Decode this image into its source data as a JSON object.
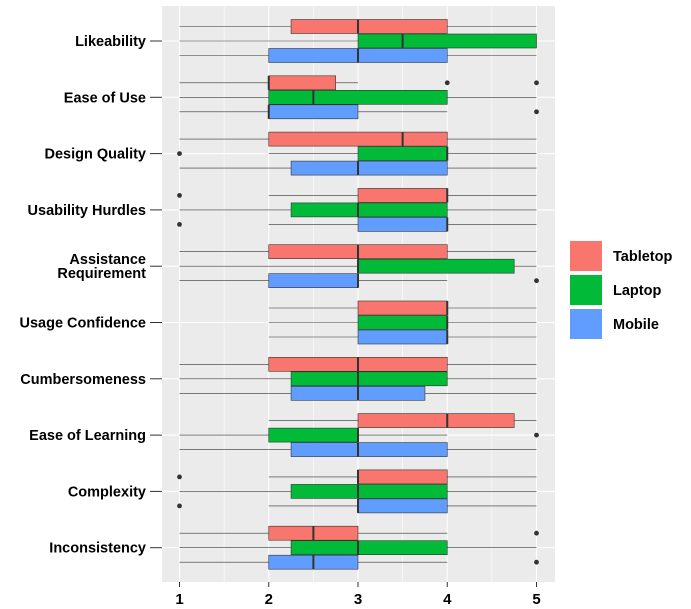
{
  "chart_data": {
    "type": "boxplot",
    "orientation": "horizontal",
    "xlim": [
      1,
      5
    ],
    "x_ticks": [
      "1",
      "2",
      "3",
      "4",
      "5"
    ],
    "grid": true,
    "legend_position": "right",
    "series": [
      {
        "name": "Tabletop",
        "color": "#F8766D"
      },
      {
        "name": "Laptop",
        "color": "#00BA38"
      },
      {
        "name": "Mobile",
        "color": "#619CFF"
      }
    ],
    "categories": [
      {
        "label": "Likeability",
        "boxes": [
          {
            "series": "Tabletop",
            "min": 1,
            "q1": 2.25,
            "median": 3,
            "q3": 4,
            "max": 5,
            "outliers": []
          },
          {
            "series": "Laptop",
            "min": 1,
            "q1": 3,
            "median": 3.5,
            "q3": 5,
            "max": 5,
            "outliers": []
          },
          {
            "series": "Mobile",
            "min": 1,
            "q1": 2,
            "median": 3,
            "q3": 4,
            "max": 5,
            "outliers": []
          }
        ]
      },
      {
        "label": "Ease of Use",
        "boxes": [
          {
            "series": "Tabletop",
            "min": 1,
            "q1": 2,
            "median": 2,
            "q3": 2.75,
            "max": 3,
            "outliers": [
              4,
              5
            ]
          },
          {
            "series": "Laptop",
            "min": 1,
            "q1": 2,
            "median": 2.5,
            "q3": 4,
            "max": 5,
            "outliers": []
          },
          {
            "series": "Mobile",
            "min": 1,
            "q1": 2,
            "median": 2,
            "q3": 3,
            "max": 4,
            "outliers": [
              5
            ]
          }
        ]
      },
      {
        "label": "Design Quality",
        "boxes": [
          {
            "series": "Tabletop",
            "min": 1,
            "q1": 2,
            "median": 3.5,
            "q3": 4,
            "max": 5,
            "outliers": []
          },
          {
            "series": "Laptop",
            "min": 2,
            "q1": 3,
            "median": 4,
            "q3": 4,
            "max": 5,
            "outliers": [
              1
            ]
          },
          {
            "series": "Mobile",
            "min": 1,
            "q1": 2.25,
            "median": 3,
            "q3": 4,
            "max": 5,
            "outliers": []
          }
        ]
      },
      {
        "label": "Usability Hurdles",
        "boxes": [
          {
            "series": "Tabletop",
            "min": 2,
            "q1": 3,
            "median": 4,
            "q3": 4,
            "max": 5,
            "outliers": [
              1
            ]
          },
          {
            "series": "Laptop",
            "min": 1,
            "q1": 2.25,
            "median": 3,
            "q3": 4,
            "max": 5,
            "outliers": []
          },
          {
            "series": "Mobile",
            "min": 2,
            "q1": 3,
            "median": 4,
            "q3": 4,
            "max": 5,
            "outliers": [
              1
            ]
          }
        ]
      },
      {
        "label": "Assistance\nRequirement",
        "boxes": [
          {
            "series": "Tabletop",
            "min": 1,
            "q1": 2,
            "median": 3,
            "q3": 4,
            "max": 5,
            "outliers": []
          },
          {
            "series": "Laptop",
            "min": 1,
            "q1": 3,
            "median": 3,
            "q3": 4.75,
            "max": 5,
            "outliers": []
          },
          {
            "series": "Mobile",
            "min": 1,
            "q1": 2,
            "median": 3,
            "q3": 3,
            "max": 4,
            "outliers": [
              5
            ]
          }
        ]
      },
      {
        "label": "Usage Confidence",
        "boxes": [
          {
            "series": "Tabletop",
            "min": 2,
            "q1": 3,
            "median": 4,
            "q3": 4,
            "max": 5,
            "outliers": []
          },
          {
            "series": "Laptop",
            "min": 2,
            "q1": 3,
            "median": 4,
            "q3": 4,
            "max": 5,
            "outliers": []
          },
          {
            "series": "Mobile",
            "min": 2,
            "q1": 3,
            "median": 4,
            "q3": 4,
            "max": 5,
            "outliers": []
          }
        ]
      },
      {
        "label": "Cumbersomeness",
        "boxes": [
          {
            "series": "Tabletop",
            "min": 1,
            "q1": 2,
            "median": 3,
            "q3": 4,
            "max": 5,
            "outliers": []
          },
          {
            "series": "Laptop",
            "min": 1,
            "q1": 2.25,
            "median": 3,
            "q3": 4,
            "max": 5,
            "outliers": []
          },
          {
            "series": "Mobile",
            "min": 1,
            "q1": 2.25,
            "median": 3,
            "q3": 3.75,
            "max": 5,
            "outliers": []
          }
        ]
      },
      {
        "label": "Ease of Learning",
        "boxes": [
          {
            "series": "Tabletop",
            "min": 2,
            "q1": 3,
            "median": 4,
            "q3": 4.75,
            "max": 5,
            "outliers": []
          },
          {
            "series": "Laptop",
            "min": 1,
            "q1": 2,
            "median": 3,
            "q3": 3,
            "max": 4,
            "outliers": [
              5
            ]
          },
          {
            "series": "Mobile",
            "min": 1,
            "q1": 2.25,
            "median": 3,
            "q3": 4,
            "max": 5,
            "outliers": []
          }
        ]
      },
      {
        "label": "Complexity",
        "boxes": [
          {
            "series": "Tabletop",
            "min": 2,
            "q1": 3,
            "median": 3,
            "q3": 4,
            "max": 5,
            "outliers": [
              1
            ]
          },
          {
            "series": "Laptop",
            "min": 1,
            "q1": 2.25,
            "median": 3,
            "q3": 4,
            "max": 5,
            "outliers": []
          },
          {
            "series": "Mobile",
            "min": 2,
            "q1": 3,
            "median": 3,
            "q3": 4,
            "max": 5,
            "outliers": [
              1
            ]
          }
        ]
      },
      {
        "label": "Inconsistency",
        "boxes": [
          {
            "series": "Tabletop",
            "min": 1,
            "q1": 2,
            "median": 2.5,
            "q3": 3,
            "max": 4,
            "outliers": [
              5
            ]
          },
          {
            "series": "Laptop",
            "min": 1,
            "q1": 2.25,
            "median": 3,
            "q3": 4,
            "max": 5,
            "outliers": []
          },
          {
            "series": "Mobile",
            "min": 1,
            "q1": 2,
            "median": 2.5,
            "q3": 3,
            "max": 4,
            "outliers": [
              5
            ]
          }
        ]
      }
    ]
  }
}
